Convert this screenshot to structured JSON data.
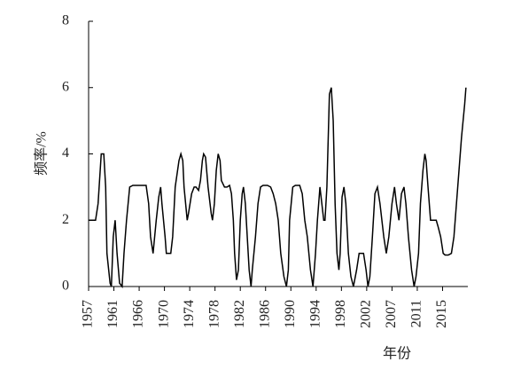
{
  "chart_data": {
    "type": "line",
    "x_label": "年份",
    "y_label": "频率/%",
    "x": [
      0,
      1.1,
      1.5,
      2.0,
      2.4,
      2.7,
      2.9,
      3.4,
      3.6,
      3.9,
      4.2,
      4.5,
      4.9,
      5.3,
      5.6,
      6.0,
      6.5,
      7.0,
      9.1,
      9.5,
      9.8,
      10.2,
      10.7,
      11.1,
      11.4,
      11.6,
      12.1,
      12.3,
      13.0,
      13.3,
      13.7,
      14.3,
      14.6,
      14.9,
      15.1,
      15.6,
      15.8,
      16.3,
      16.7,
      17.0,
      17.4,
      17.7,
      18.0,
      18.2,
      18.5,
      18.9,
      19.4,
      19.6,
      19.9,
      20.2,
      20.5,
      20.8,
      21.0,
      21.5,
      21.9,
      22.3,
      22.6,
      22.9,
      23.1,
      23.4,
      23.7,
      24.0,
      24.3,
      24.5,
      24.8,
      25.1,
      25.4,
      25.7,
      25.9,
      26.4,
      26.8,
      27.2,
      27.6,
      28.3,
      28.8,
      29.2,
      29.6,
      30.0,
      30.4,
      30.9,
      31.3,
      31.6,
      31.8,
      32.3,
      32.7,
      33.4,
      33.8,
      34.2,
      34.6,
      35.1,
      35.5,
      35.9,
      36.2,
      36.6,
      36.9,
      37.2,
      37.4,
      37.7,
      38.1,
      38.4,
      38.7,
      39.0,
      39.3,
      39.6,
      39.8,
      40.1,
      40.4,
      40.7,
      41.1,
      41.5,
      41.9,
      42.4,
      42.8,
      43.5,
      43.9,
      44.2,
      44.5,
      44.9,
      45.3,
      45.7,
      46.1,
      46.7,
      47.1,
      47.5,
      48.0,
      48.4,
      48.7,
      49.1,
      49.5,
      49.9,
      50.2,
      50.6,
      51.1,
      51.5,
      51.8,
      52.2,
      52.5,
      52.9,
      53.2,
      53.4,
      53.7,
      54.1,
      54.6,
      55.0,
      55.3,
      55.7,
      56.1,
      56.4,
      56.9,
      57.4,
      57.8,
      58.2,
      58.6,
      59.0,
      59.5,
      59.7
    ],
    "series": [
      {
        "color": "#000000",
        "values": [
          2,
          2,
          2.5,
          4,
          4,
          3,
          1,
          0.1,
          0,
          1.5,
          2,
          1,
          0.1,
          0,
          1,
          2,
          3,
          3.05,
          3.05,
          2.5,
          1.5,
          1,
          2,
          2.7,
          3,
          2.5,
          1.5,
          1,
          1,
          1.5,
          3,
          3.8,
          4,
          3.8,
          3,
          2,
          2.2,
          2.8,
          3,
          3,
          2.9,
          3.2,
          3.8,
          4,
          3.9,
          3,
          2.2,
          2,
          2.5,
          3.5,
          4,
          3.8,
          3.2,
          3,
          3,
          3.05,
          2.8,
          2,
          1,
          0.2,
          0.5,
          2,
          2.8,
          3,
          2.5,
          1.5,
          0.5,
          0,
          0.5,
          1.5,
          2.5,
          3,
          3.05,
          3.05,
          3,
          2.8,
          2.5,
          2,
          1,
          0.3,
          0,
          0.5,
          2,
          3,
          3.05,
          3.05,
          2.8,
          2,
          1.5,
          0.5,
          0,
          1,
          2,
          3,
          2.5,
          2,
          2,
          3,
          5.8,
          6,
          5,
          2.5,
          1,
          0.5,
          1,
          2.7,
          3,
          2.5,
          1,
          0.3,
          0,
          0.5,
          1,
          1,
          0.5,
          0,
          0.3,
          1.5,
          2.8,
          3,
          2.5,
          1.5,
          1,
          1.5,
          2.5,
          3,
          2.5,
          2,
          2.8,
          3,
          2.5,
          1.5,
          0.5,
          0,
          0.3,
          1,
          2.5,
          3.5,
          4,
          3.8,
          3,
          2,
          2,
          2,
          1.8,
          1.5,
          1,
          0.95,
          0.95,
          1,
          1.5,
          2.5,
          3.5,
          4.5,
          5.5,
          6
        ]
      }
    ],
    "xlim": [
      0,
      60
    ],
    "xticks": [
      {
        "value": 0,
        "label": "1957"
      },
      {
        "value": 4,
        "label": "1961"
      },
      {
        "value": 8,
        "label": "1966"
      },
      {
        "value": 12,
        "label": "1970"
      },
      {
        "value": 16,
        "label": "1974"
      },
      {
        "value": 20,
        "label": "1978"
      },
      {
        "value": 24,
        "label": "1982"
      },
      {
        "value": 28,
        "label": "1986"
      },
      {
        "value": 32,
        "label": "1990"
      },
      {
        "value": 36,
        "label": "1994"
      },
      {
        "value": 40,
        "label": "1998"
      },
      {
        "value": 44,
        "label": "2002"
      },
      {
        "value": 48,
        "label": "2007"
      },
      {
        "value": 52,
        "label": "2011"
      },
      {
        "value": 56,
        "label": "2015"
      }
    ],
    "ylim": [
      0,
      8
    ],
    "yticks": [
      0,
      2,
      4,
      6,
      8
    ]
  }
}
